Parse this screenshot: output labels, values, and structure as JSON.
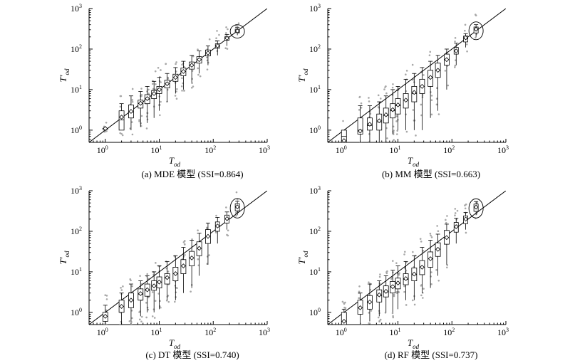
{
  "chart_data": [
    {
      "type": "scatter",
      "subtype": "boxplot-with-scatter",
      "caption": "(a) MDE 模型 (SSI=0.864)",
      "xlabel": "T",
      "xlabel_sub": "od",
      "ylabel": "T'",
      "ylabel_sub": "od",
      "x_scale": "log",
      "y_scale": "log",
      "xlim": [
        0.5,
        1000
      ],
      "ylim": [
        0.5,
        1000
      ],
      "x_tick_base": "10",
      "x_tick_exponents": [
        "0",
        "1",
        "2",
        "3"
      ],
      "y_tick_base": "10",
      "y_tick_exponents": [
        "0",
        "1",
        "2",
        "3"
      ],
      "reference_line": "y = x",
      "boxes": [
        {
          "x": 1,
          "q1": 1.1,
          "median": 1.1,
          "q3": 1.1,
          "whisker_low": 1.1,
          "whisker_high": 1.1,
          "mean": 1.1
        },
        {
          "x": 2,
          "q1": 1.0,
          "median": 1.8,
          "q3": 3.0,
          "whisker_low": 1.0,
          "whisker_high": 4.5,
          "mean": 2.1
        },
        {
          "x": 3,
          "q1": 2.0,
          "median": 2.8,
          "q3": 4.2,
          "whisker_low": 1.0,
          "whisker_high": 7,
          "mean": 2.9
        },
        {
          "x": 4.5,
          "q1": 3.5,
          "median": 4.5,
          "q3": 5.5,
          "whisker_low": 1.2,
          "whisker_high": 9,
          "mean": 4.6
        },
        {
          "x": 6,
          "q1": 4.5,
          "median": 5.8,
          "q3": 7.5,
          "whisker_low": 1.5,
          "whisker_high": 12,
          "mean": 6.0
        },
        {
          "x": 8,
          "q1": 6.0,
          "median": 7.8,
          "q3": 9.5,
          "whisker_low": 2,
          "whisker_high": 16,
          "mean": 8.0
        },
        {
          "x": 10,
          "q1": 8.0,
          "median": 10,
          "q3": 12,
          "whisker_low": 3,
          "whisker_high": 20,
          "mean": 10
        },
        {
          "x": 14,
          "q1": 11,
          "median": 14,
          "q3": 17,
          "whisker_low": 5,
          "whisker_high": 25,
          "mean": 14
        },
        {
          "x": 20,
          "q1": 16,
          "median": 20,
          "q3": 24,
          "whisker_low": 8,
          "whisker_high": 35,
          "mean": 20
        },
        {
          "x": 28,
          "q1": 22,
          "median": 28,
          "q3": 34,
          "whisker_low": 10,
          "whisker_high": 50,
          "mean": 28
        },
        {
          "x": 40,
          "q1": 32,
          "median": 40,
          "q3": 48,
          "whisker_low": 15,
          "whisker_high": 70,
          "mean": 40
        },
        {
          "x": 55,
          "q1": 45,
          "median": 55,
          "q3": 65,
          "whisker_low": 25,
          "whisker_high": 90,
          "mean": 55
        },
        {
          "x": 80,
          "q1": 68,
          "median": 80,
          "q3": 95,
          "whisker_low": 40,
          "whisker_high": 120,
          "mean": 80
        },
        {
          "x": 120,
          "q1": 105,
          "median": 120,
          "q3": 135,
          "whisker_low": 70,
          "whisker_high": 160,
          "mean": 120
        },
        {
          "x": 180,
          "q1": 165,
          "median": 180,
          "q3": 200,
          "whisker_low": 120,
          "whisker_high": 230,
          "mean": 185
        },
        {
          "x": 280,
          "q1": 255,
          "median": 280,
          "q3": 310,
          "whisker_low": 220,
          "whisker_high": 340,
          "mean": 280
        }
      ],
      "highlight_ellipse_x": 280
    },
    {
      "type": "scatter",
      "subtype": "boxplot-with-scatter",
      "caption": "(b) MM 模型 (SSI=0.663)",
      "xlabel": "T",
      "xlabel_sub": "od",
      "ylabel": "T'",
      "ylabel_sub": "od",
      "x_scale": "log",
      "y_scale": "log",
      "xlim": [
        0.5,
        1000
      ],
      "ylim": [
        0.5,
        1000
      ],
      "x_tick_base": "10",
      "x_tick_exponents": [
        "0",
        "1",
        "2",
        "3"
      ],
      "y_tick_base": "10",
      "y_tick_exponents": [
        "0",
        "1",
        "2",
        "3"
      ],
      "reference_line": "y = x",
      "boxes": [
        {
          "x": 1,
          "q1": 0.5,
          "median": 0.7,
          "q3": 1.0,
          "whisker_low": 0.5,
          "whisker_high": 1.0,
          "mean": 0.55
        },
        {
          "x": 2,
          "q1": 0.8,
          "median": 1.0,
          "q3": 2.0,
          "whisker_low": 0.5,
          "whisker_high": 4,
          "mean": 0.95
        },
        {
          "x": 3,
          "q1": 1.0,
          "median": 1.3,
          "q3": 2.0,
          "whisker_low": 0.5,
          "whisker_high": 4,
          "mean": 1.4
        },
        {
          "x": 4.5,
          "q1": 1.0,
          "median": 1.6,
          "q3": 2.5,
          "whisker_low": 0.5,
          "whisker_high": 5,
          "mean": 1.7
        },
        {
          "x": 6,
          "q1": 1.5,
          "median": 2.3,
          "q3": 3.5,
          "whisker_low": 0.5,
          "whisker_high": 7,
          "mean": 2.4
        },
        {
          "x": 8,
          "q1": 2.0,
          "median": 3.0,
          "q3": 4.5,
          "whisker_low": 0.8,
          "whisker_high": 10,
          "mean": 3.2
        },
        {
          "x": 10,
          "q1": 2.5,
          "median": 4.0,
          "q3": 6.0,
          "whisker_low": 1,
          "whisker_high": 12,
          "mean": 4.2
        },
        {
          "x": 14,
          "q1": 3.5,
          "median": 5.5,
          "q3": 8,
          "whisker_low": 1,
          "whisker_high": 18,
          "mean": 5.5
        },
        {
          "x": 20,
          "q1": 5,
          "median": 8,
          "q3": 12,
          "whisker_low": 1,
          "whisker_high": 25,
          "mean": 8.5
        },
        {
          "x": 28,
          "q1": 8,
          "median": 12,
          "q3": 18,
          "whisker_low": 1,
          "whisker_high": 35,
          "mean": 12
        },
        {
          "x": 40,
          "q1": 12,
          "median": 20,
          "q3": 30,
          "whisker_low": 2,
          "whisker_high": 50,
          "mean": 20
        },
        {
          "x": 55,
          "q1": 20,
          "median": 30,
          "q3": 45,
          "whisker_low": 3,
          "whisker_high": 70,
          "mean": 30
        },
        {
          "x": 80,
          "q1": 40,
          "median": 55,
          "q3": 75,
          "whisker_low": 10,
          "whisker_high": 100,
          "mean": 55
        },
        {
          "x": 120,
          "q1": 75,
          "median": 90,
          "q3": 110,
          "whisker_low": 40,
          "whisker_high": 140,
          "mean": 90
        },
        {
          "x": 180,
          "q1": 150,
          "median": 180,
          "q3": 210,
          "whisker_low": 110,
          "whisker_high": 240,
          "mean": 190
        },
        {
          "x": 280,
          "q1": 250,
          "median": 300,
          "q3": 350,
          "whisker_low": 200,
          "whisker_high": 400,
          "mean": 310
        }
      ],
      "highlight_ellipse_x": 280
    },
    {
      "type": "scatter",
      "subtype": "boxplot-with-scatter",
      "caption": "(c) DT 模型 (SSI=0.740)",
      "xlabel": "T",
      "xlabel_sub": "od",
      "ylabel": "T'",
      "ylabel_sub": "od",
      "x_scale": "log",
      "y_scale": "log",
      "xlim": [
        0.5,
        1000
      ],
      "ylim": [
        0.5,
        1000
      ],
      "x_tick_base": "10",
      "x_tick_exponents": [
        "0",
        "1",
        "2",
        "3"
      ],
      "y_tick_base": "10",
      "y_tick_exponents": [
        "0",
        "1",
        "2",
        "3"
      ],
      "reference_line": "y = x",
      "boxes": [
        {
          "x": 1,
          "q1": 0.6,
          "median": 0.8,
          "q3": 1.0,
          "whisker_low": 0.5,
          "whisker_high": 1.5,
          "mean": 0.8
        },
        {
          "x": 2,
          "q1": 1.0,
          "median": 1.4,
          "q3": 2.0,
          "whisker_low": 0.5,
          "whisker_high": 3,
          "mean": 1.4
        },
        {
          "x": 3,
          "q1": 1.3,
          "median": 2.0,
          "q3": 3.0,
          "whisker_low": 0.6,
          "whisker_high": 5,
          "mean": 2.0
        },
        {
          "x": 4.5,
          "q1": 2.0,
          "median": 2.8,
          "q3": 3.8,
          "whisker_low": 0.8,
          "whisker_high": 6,
          "mean": 2.9
        },
        {
          "x": 6,
          "q1": 2.5,
          "median": 3.5,
          "q3": 5.0,
          "whisker_low": 1,
          "whisker_high": 8,
          "mean": 3.6
        },
        {
          "x": 8,
          "q1": 3.5,
          "median": 4.5,
          "q3": 6.0,
          "whisker_low": 1,
          "whisker_high": 10,
          "mean": 4.5
        },
        {
          "x": 10,
          "q1": 4.0,
          "median": 5.5,
          "q3": 7.5,
          "whisker_low": 1.2,
          "whisker_high": 14,
          "mean": 5.6
        },
        {
          "x": 14,
          "q1": 5.0,
          "median": 7,
          "q3": 9,
          "whisker_low": 2,
          "whisker_high": 18,
          "mean": 7.2
        },
        {
          "x": 20,
          "q1": 6,
          "median": 9,
          "q3": 13,
          "whisker_low": 2,
          "whisker_high": 25,
          "mean": 9
        },
        {
          "x": 28,
          "q1": 9,
          "median": 14,
          "q3": 20,
          "whisker_low": 3,
          "whisker_high": 40,
          "mean": 14
        },
        {
          "x": 40,
          "q1": 14,
          "median": 22,
          "q3": 32,
          "whisker_low": 4,
          "whisker_high": 60,
          "mean": 22
        },
        {
          "x": 55,
          "q1": 25,
          "median": 38,
          "q3": 55,
          "whisker_low": 8,
          "whisker_high": 90,
          "mean": 38
        },
        {
          "x": 80,
          "q1": 50,
          "median": 75,
          "q3": 110,
          "whisker_low": 15,
          "whisker_high": 160,
          "mean": 75
        },
        {
          "x": 120,
          "q1": 100,
          "median": 135,
          "q3": 170,
          "whisker_low": 50,
          "whisker_high": 220,
          "mean": 135
        },
        {
          "x": 180,
          "q1": 160,
          "median": 200,
          "q3": 250,
          "whisker_low": 110,
          "whisker_high": 300,
          "mean": 205
        },
        {
          "x": 280,
          "q1": 320,
          "median": 400,
          "q3": 480,
          "whisker_low": 250,
          "whisker_high": 550,
          "mean": 400
        }
      ],
      "highlight_ellipse_x": 280
    },
    {
      "type": "scatter",
      "subtype": "boxplot-with-scatter",
      "caption": "(d) RF 模型 (SSI=0.737)",
      "xlabel": "T",
      "xlabel_sub": "od",
      "ylabel": "T'",
      "ylabel_sub": "od",
      "x_scale": "log",
      "y_scale": "log",
      "xlim": [
        0.5,
        1000
      ],
      "ylim": [
        0.5,
        1000
      ],
      "x_tick_base": "10",
      "x_tick_exponents": [
        "0",
        "1",
        "2",
        "3"
      ],
      "y_tick_base": "10",
      "y_tick_exponents": [
        "0",
        "1",
        "2",
        "3"
      ],
      "reference_line": "y = x",
      "boxes": [
        {
          "x": 1,
          "q1": 0.5,
          "median": 0.6,
          "q3": 1.0,
          "whisker_low": 0.5,
          "whisker_high": 1.2,
          "mean": 0.6
        },
        {
          "x": 2,
          "q1": 0.9,
          "median": 1.3,
          "q3": 2.0,
          "whisker_low": 0.5,
          "whisker_high": 3,
          "mean": 1.3
        },
        {
          "x": 3,
          "q1": 1.2,
          "median": 1.8,
          "q3": 2.6,
          "whisker_low": 0.6,
          "whisker_high": 5,
          "mean": 1.8
        },
        {
          "x": 4.5,
          "q1": 1.8,
          "median": 2.6,
          "q3": 3.6,
          "whisker_low": 0.8,
          "whisker_high": 6,
          "mean": 2.7
        },
        {
          "x": 6,
          "q1": 2.4,
          "median": 3.2,
          "q3": 4.5,
          "whisker_low": 1,
          "whisker_high": 8,
          "mean": 3.3
        },
        {
          "x": 8,
          "q1": 3.0,
          "median": 4.2,
          "q3": 5.8,
          "whisker_low": 1,
          "whisker_high": 11,
          "mean": 4.3
        },
        {
          "x": 10,
          "q1": 3.8,
          "median": 5.2,
          "q3": 7.0,
          "whisker_low": 1.2,
          "whisker_high": 14,
          "mean": 5.3
        },
        {
          "x": 14,
          "q1": 4.8,
          "median": 6.5,
          "q3": 9,
          "whisker_low": 2,
          "whisker_high": 18,
          "mean": 6.8
        },
        {
          "x": 20,
          "q1": 6,
          "median": 8.5,
          "q3": 12.5,
          "whisker_low": 2,
          "whisker_high": 25,
          "mean": 8.8
        },
        {
          "x": 28,
          "q1": 8.5,
          "median": 13,
          "q3": 19,
          "whisker_low": 3,
          "whisker_high": 40,
          "mean": 13
        },
        {
          "x": 40,
          "q1": 13,
          "median": 21,
          "q3": 31,
          "whisker_low": 4,
          "whisker_high": 60,
          "mean": 21
        },
        {
          "x": 55,
          "q1": 24,
          "median": 36,
          "q3": 52,
          "whisker_low": 8,
          "whisker_high": 85,
          "mean": 36
        },
        {
          "x": 80,
          "q1": 48,
          "median": 70,
          "q3": 105,
          "whisker_low": 15,
          "whisker_high": 150,
          "mean": 70
        },
        {
          "x": 120,
          "q1": 95,
          "median": 130,
          "q3": 165,
          "whisker_low": 50,
          "whisker_high": 210,
          "mean": 130
        },
        {
          "x": 180,
          "q1": 155,
          "median": 195,
          "q3": 240,
          "whisker_low": 110,
          "whisker_high": 290,
          "mean": 200
        },
        {
          "x": 280,
          "q1": 310,
          "median": 390,
          "q3": 470,
          "whisker_low": 250,
          "whisker_high": 540,
          "mean": 395
        }
      ],
      "highlight_ellipse_x": 280
    }
  ]
}
